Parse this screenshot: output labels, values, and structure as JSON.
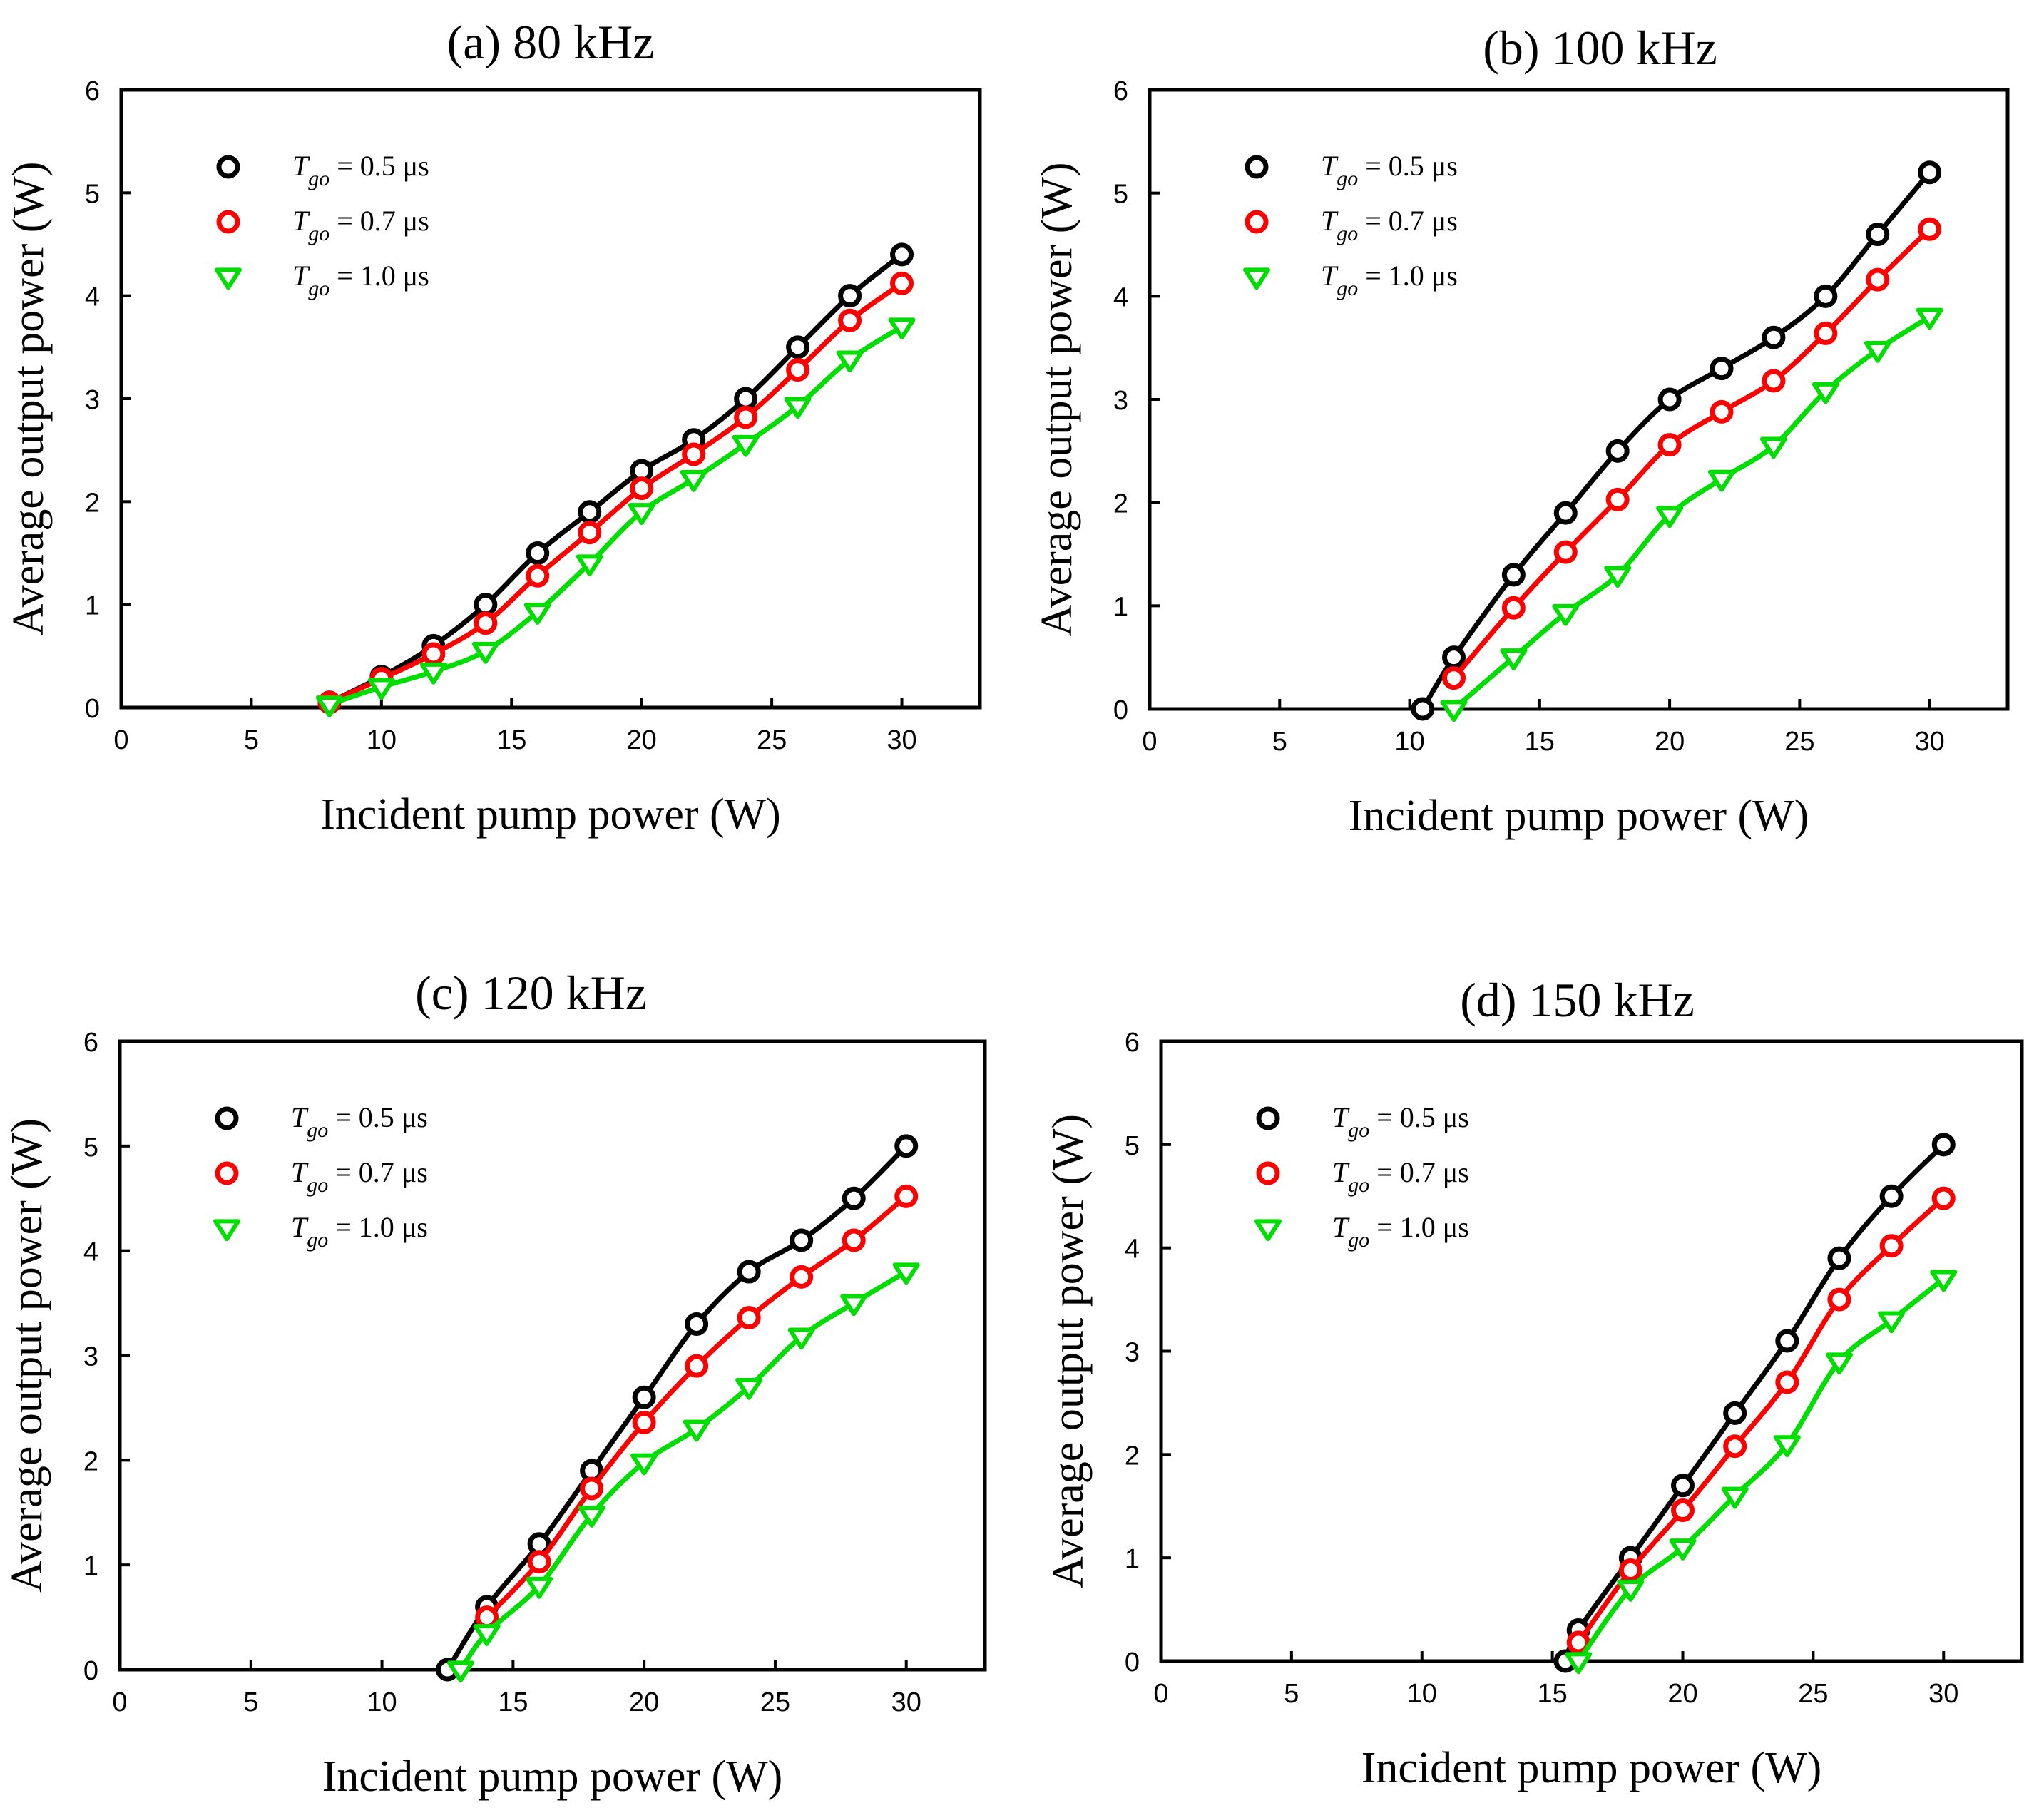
{
  "figure": {
    "series_legend": [
      {
        "var": "T",
        "sub": "go",
        "label": " = 0.5 μs",
        "color": "#000000",
        "marker": "circle"
      },
      {
        "var": "T",
        "sub": "go",
        "label": " = 0.7 μs",
        "color": "#ff0000",
        "marker": "circle"
      },
      {
        "var": "T",
        "sub": "go",
        "label": " = 1.0 μs",
        "color": "#00dd00",
        "marker": "triangle-down"
      }
    ]
  },
  "chart_data": [
    {
      "type": "line",
      "title": "(a) 80 kHz",
      "xlabel": "Incident pump power (W)",
      "ylabel": "Average output power (W)",
      "xlim": [
        0,
        33
      ],
      "ylim": [
        0,
        6
      ],
      "xticks": [
        0,
        5,
        10,
        15,
        20,
        25,
        30
      ],
      "yticks": [
        0,
        1,
        2,
        3,
        4,
        5,
        6
      ],
      "grid": false,
      "legend": "top-left",
      "series": [
        {
          "name": "Tgo = 0.5 μs",
          "color": "#000000",
          "marker": "circle",
          "x": [
            8,
            10,
            12,
            14,
            16,
            18,
            20,
            22,
            24,
            26,
            28,
            30
          ],
          "y": [
            0.05,
            0.3,
            0.6,
            1.0,
            1.5,
            1.9,
            2.3,
            2.6,
            3.0,
            3.5,
            4.0,
            4.4
          ]
        },
        {
          "name": "Tgo = 0.7 μs",
          "color": "#ff0000",
          "marker": "circle",
          "x": [
            8,
            10,
            12,
            14,
            16,
            18,
            20,
            22,
            24,
            26,
            28,
            30
          ],
          "y": [
            0.05,
            0.28,
            0.52,
            0.82,
            1.28,
            1.7,
            2.13,
            2.46,
            2.82,
            3.28,
            3.76,
            4.12
          ]
        },
        {
          "name": "Tgo = 1.0 μs",
          "color": "#00dd00",
          "marker": "triangle-down",
          "x": [
            8,
            10,
            12,
            14,
            16,
            18,
            20,
            22,
            24,
            26,
            28,
            30
          ],
          "y": [
            0.03,
            0.2,
            0.35,
            0.55,
            0.93,
            1.4,
            1.9,
            2.22,
            2.56,
            2.93,
            3.38,
            3.7
          ]
        }
      ]
    },
    {
      "type": "line",
      "title": "(b) 100 kHz",
      "xlabel": "Incident pump power (W)",
      "ylabel": "Average output power (W)",
      "xlim": [
        0,
        33
      ],
      "ylim": [
        0,
        6
      ],
      "xticks": [
        0,
        5,
        10,
        15,
        20,
        25,
        30
      ],
      "yticks": [
        0,
        1,
        2,
        3,
        4,
        5,
        6
      ],
      "grid": false,
      "legend": "top-left",
      "series": [
        {
          "name": "Tgo = 0.5 μs",
          "color": "#000000",
          "marker": "circle",
          "x": [
            10.5,
            11.7,
            14,
            16,
            18,
            20,
            22,
            24,
            26,
            28,
            30
          ],
          "y": [
            0.0,
            0.5,
            1.3,
            1.9,
            2.5,
            3.0,
            3.3,
            3.6,
            4.0,
            4.6,
            5.2
          ]
        },
        {
          "name": "Tgo = 0.7 μs",
          "color": "#ff0000",
          "marker": "circle",
          "x": [
            11.7,
            14,
            16,
            18,
            20,
            22,
            24,
            26,
            28,
            30
          ],
          "y": [
            0.3,
            0.98,
            1.52,
            2.03,
            2.56,
            2.88,
            3.18,
            3.64,
            4.16,
            4.65
          ]
        },
        {
          "name": "Tgo = 1.0 μs",
          "color": "#00dd00",
          "marker": "triangle-down",
          "x": [
            11.7,
            14,
            16,
            18,
            20,
            22,
            24,
            26,
            28,
            30
          ],
          "y": [
            0.0,
            0.5,
            0.93,
            1.3,
            1.88,
            2.23,
            2.55,
            3.08,
            3.48,
            3.8
          ]
        }
      ]
    },
    {
      "type": "line",
      "title": "(c) 120 kHz",
      "xlabel": "Incident pump power (W)",
      "ylabel": "Average output power (W)",
      "xlim": [
        0,
        33
      ],
      "ylim": [
        0,
        6
      ],
      "xticks": [
        0,
        5,
        10,
        15,
        20,
        25,
        30
      ],
      "yticks": [
        0,
        1,
        2,
        3,
        4,
        5,
        6
      ],
      "grid": false,
      "legend": "top-left",
      "series": [
        {
          "name": "Tgo = 0.5 μs",
          "color": "#000000",
          "marker": "circle",
          "x": [
            12.5,
            14,
            16,
            18,
            20,
            22,
            24,
            26,
            28,
            30
          ],
          "y": [
            0.0,
            0.6,
            1.2,
            1.9,
            2.6,
            3.3,
            3.8,
            4.1,
            4.5,
            5.0
          ]
        },
        {
          "name": "Tgo = 0.7 μs",
          "color": "#ff0000",
          "marker": "circle",
          "x": [
            14,
            16,
            18,
            20,
            22,
            24,
            26,
            28,
            30
          ],
          "y": [
            0.5,
            1.03,
            1.73,
            2.36,
            2.9,
            3.36,
            3.75,
            4.1,
            4.52
          ]
        },
        {
          "name": "Tgo = 1.0 μs",
          "color": "#00dd00",
          "marker": "triangle-down",
          "x": [
            13,
            14,
            16,
            18,
            20,
            22,
            24,
            26,
            28,
            30
          ],
          "y": [
            0.0,
            0.35,
            0.8,
            1.48,
            1.98,
            2.3,
            2.7,
            3.18,
            3.5,
            3.8
          ]
        }
      ]
    },
    {
      "type": "line",
      "title": "(d) 150 kHz",
      "xlabel": "Incident pump power (W)",
      "ylabel": "Average output power (W)",
      "xlim": [
        0,
        33
      ],
      "ylim": [
        0,
        6
      ],
      "xticks": [
        0,
        5,
        10,
        15,
        20,
        25,
        30
      ],
      "yticks": [
        0,
        1,
        2,
        3,
        4,
        5,
        6
      ],
      "grid": false,
      "legend": "top-left",
      "series": [
        {
          "name": "Tgo = 0.5 μs",
          "color": "#000000",
          "marker": "circle",
          "x": [
            15.5,
            16,
            18,
            20,
            22,
            24,
            26,
            28,
            30
          ],
          "y": [
            0.0,
            0.3,
            1.0,
            1.7,
            2.4,
            3.1,
            3.9,
            4.5,
            5.0
          ]
        },
        {
          "name": "Tgo = 0.7 μs",
          "color": "#ff0000",
          "marker": "circle",
          "x": [
            16,
            18,
            20,
            22,
            24,
            26,
            28,
            30
          ],
          "y": [
            0.18,
            0.88,
            1.46,
            2.08,
            2.7,
            3.5,
            4.02,
            4.48
          ]
        },
        {
          "name": "Tgo = 1.0 μs",
          "color": "#00dd00",
          "marker": "triangle-down",
          "x": [
            16,
            18,
            20,
            22,
            24,
            26,
            28,
            30
          ],
          "y": [
            0.0,
            0.7,
            1.1,
            1.6,
            2.1,
            2.9,
            3.3,
            3.7
          ]
        }
      ]
    }
  ]
}
